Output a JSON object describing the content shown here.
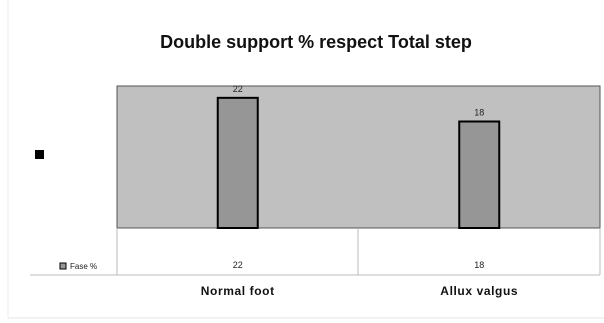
{
  "chart_data": {
    "type": "bar",
    "title": "Double support % respect Total step",
    "categories": [
      "Normal foot",
      "Allux valgus"
    ],
    "series": [
      {
        "name": "Fase %",
        "values": [
          22,
          18
        ]
      }
    ],
    "ylim": [
      0,
      24
    ],
    "grid": false,
    "legend_placement": "left",
    "data_table": true,
    "colors": {
      "plot_background": "#c0c0c0",
      "bar_fill": "#969696",
      "bar_stroke": "#000000"
    }
  }
}
